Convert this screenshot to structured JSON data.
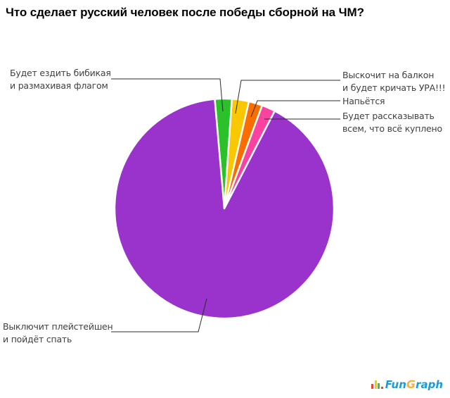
{
  "title": "Что сделает русский человек после победы сборной на ЧМ?",
  "chart_data": {
    "type": "pie",
    "title": "Что сделает русский человек после победы сборной на ЧМ?",
    "values_shown_on_chart": false,
    "legend_position": "callout labels with leader lines",
    "start_angle_deg": -5,
    "slices": [
      {
        "id": "honk-flag",
        "label": "Будет ездить бибикая и размахивая флагом",
        "value": 2.5,
        "color": "#2bc12b"
      },
      {
        "id": "balcony-ura",
        "label": "Выскочит на балкон и будет кричать УРА!!!",
        "value": 2.5,
        "color": "#f9c802"
      },
      {
        "id": "get-drunk",
        "label": "Напьётся",
        "value": 2.0,
        "color": "#fa6e00"
      },
      {
        "id": "all-bought",
        "label": "Будет рассказывать всем, что всё куплено",
        "value": 2.0,
        "color": "#fa43a0"
      },
      {
        "id": "playstation-sleep",
        "label": "Выключит плейстейшен и пойдёт спать",
        "value": 91.0,
        "color": "#9933cc"
      }
    ]
  },
  "callouts": {
    "honk_flag": {
      "line1": "Будет ездить бибикая",
      "line2": "и размахивая флагом"
    },
    "balcony_ura": {
      "line1": "Выскочит на балкон",
      "line2": "и будет кричать УРА!!!"
    },
    "get_drunk": {
      "line1": "Напьётся"
    },
    "all_bought": {
      "line1": "Будет рассказывать",
      "line2": "всем, что всё куплено"
    },
    "playstation_sleep": {
      "line1": "Выключит плейстейшен",
      "line2": "и пойдёт спать"
    }
  },
  "logo": {
    "fun": "Fun",
    "g": "G",
    "raph": "raph",
    "brand_blue": "#1b9bd7",
    "brand_orange": "#fbb03b"
  }
}
